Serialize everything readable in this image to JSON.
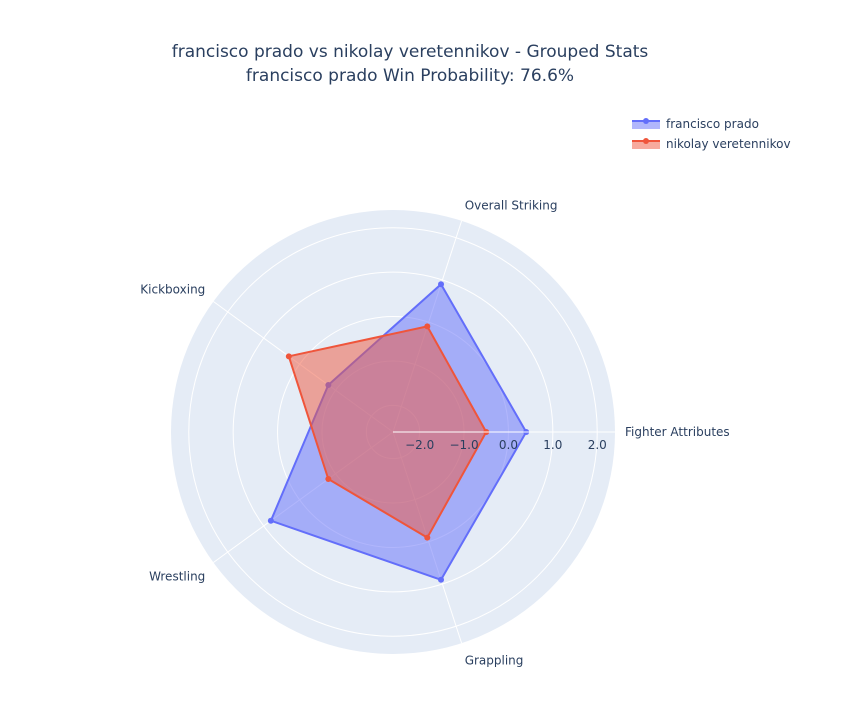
{
  "title": {
    "line1": "francisco prado vs nikolay veretennikov - Grouped Stats",
    "line2": "francisco prado Win Probability: 76.6%"
  },
  "colors": {
    "background": "#e5ecf6",
    "grid": "#ffffff",
    "text": "#2a3f5f",
    "series1": "#636efa",
    "series2": "#ef553b"
  },
  "chart_data": {
    "type": "radar",
    "categories": [
      "Fighter Attributes",
      "Overall Striking",
      "Kickboxing",
      "Wrestling",
      "Grappling"
    ],
    "radial_ticks": [
      "−2.0",
      "−1.0",
      "0.0",
      "1.0",
      "2.0"
    ],
    "radial_tick_values": [
      -2,
      -1,
      0,
      1,
      2
    ],
    "radial_range": [
      -2.6,
      2.4
    ],
    "series": [
      {
        "name": "francisco prado",
        "color": "#636efa",
        "values": [
          0.4,
          0.9,
          -0.8,
          0.8,
          0.9
        ]
      },
      {
        "name": "nikolay veretennikov",
        "color": "#ef553b",
        "values": [
          -0.5,
          -0.1,
          0.3,
          -0.8,
          -0.1
        ]
      }
    ],
    "legend_position": "top-right",
    "grid": true
  }
}
